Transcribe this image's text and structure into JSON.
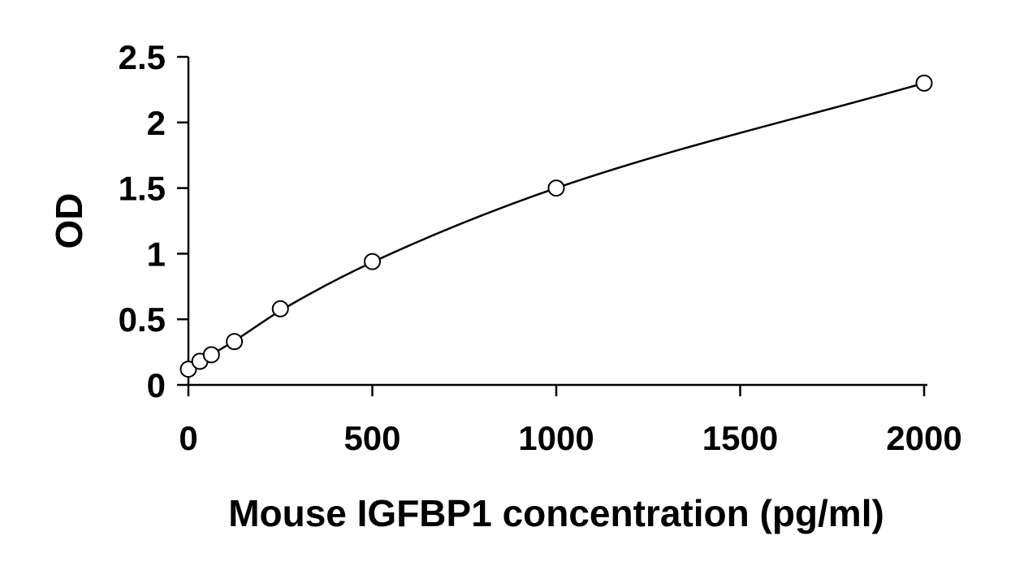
{
  "chart_data": {
    "type": "scatter",
    "title": "",
    "xlabel": "Mouse IGFBP1 concentration (pg/ml)",
    "ylabel": "OD",
    "xlim": [
      0,
      2000
    ],
    "ylim": [
      0,
      2.5
    ],
    "x_ticks": [
      "0",
      "500",
      "1000",
      "1500",
      "2000"
    ],
    "y_ticks": [
      "0",
      "0.5",
      "1",
      "1.5",
      "2",
      "2.5"
    ],
    "grid": false,
    "legend": "none",
    "series": [
      {
        "marker": "open-circle",
        "x": [
          0,
          31.25,
          62.5,
          125,
          250,
          500,
          1000,
          2000
        ],
        "y": [
          0.12,
          0.18,
          0.23,
          0.33,
          0.58,
          0.94,
          1.5,
          2.3
        ]
      }
    ],
    "fit_curve": {
      "style": "smooth-line",
      "x": [
        0,
        31.25,
        62.5,
        125,
        250,
        500,
        1000,
        2000
      ],
      "y": [
        0.12,
        0.175,
        0.23,
        0.335,
        0.565,
        0.935,
        1.5,
        2.3
      ]
    }
  }
}
